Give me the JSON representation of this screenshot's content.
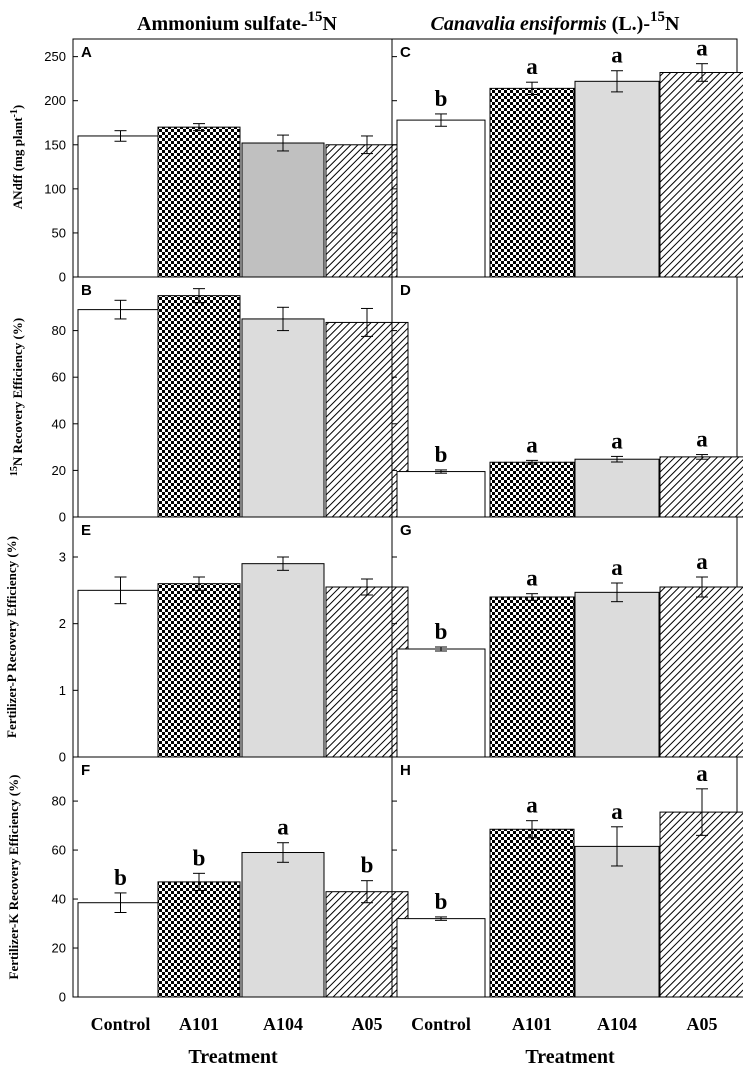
{
  "figure": {
    "column_titles": [
      {
        "main": "Ammonium sulfate-",
        "sup": "15",
        "tail": "N",
        "italic": ""
      },
      {
        "main": "Canavalia ensiformis",
        "sup": "15",
        "tail": "N",
        "italic_suffix": " (L.)-"
      }
    ],
    "x_title": "Treatment",
    "categories": [
      "Control",
      "A101",
      "A104",
      "A05"
    ],
    "fills": [
      "white",
      "checker",
      "lightgray",
      "hatch"
    ],
    "row_y_labels": [
      {
        "pre": "ANdff (mg plant",
        "sup": "-1",
        "post": ")"
      },
      {
        "pre": "",
        "sup": "15",
        "post": "N Recovery Efficiency (%)"
      },
      {
        "pre": "Fertilizer-P Recovery Efficiency (%)",
        "sup": "",
        "post": ""
      },
      {
        "pre": "Fertilizer-K Recovery Efficiency (%)",
        "sup": "",
        "post": ""
      }
    ]
  },
  "chart_data": [
    {
      "type": "bar",
      "panel": "A",
      "row": 0,
      "col": 0,
      "ylim": [
        0,
        270
      ],
      "yticks": [
        0,
        50,
        100,
        150,
        200,
        250
      ],
      "categories": [
        "Control",
        "A101",
        "A104",
        "A05"
      ],
      "values": [
        160,
        170,
        152,
        150
      ],
      "errors": [
        6,
        4,
        9,
        10
      ],
      "letters": [
        "",
        "",
        "",
        ""
      ],
      "fills": [
        "white",
        "checker",
        "gray",
        "hatch"
      ]
    },
    {
      "type": "bar",
      "panel": "C",
      "row": 0,
      "col": 1,
      "ylim": [
        0,
        270
      ],
      "yticks": [
        0,
        50,
        100,
        150,
        200,
        250
      ],
      "categories": [
        "Control",
        "A101",
        "A104",
        "A05"
      ],
      "values": [
        178,
        214,
        222,
        232
      ],
      "errors": [
        7,
        7,
        12,
        10
      ],
      "letters": [
        "b",
        "a",
        "a",
        "a"
      ],
      "fills": [
        "white",
        "checker",
        "lightgray",
        "hatch"
      ]
    },
    {
      "type": "bar",
      "panel": "B",
      "row": 1,
      "col": 0,
      "ylim": [
        0,
        103
      ],
      "yticks": [
        0,
        20,
        40,
        60,
        80
      ],
      "categories": [
        "Control",
        "A101",
        "A104",
        "A05"
      ],
      "values": [
        89,
        95,
        85,
        83.5
      ],
      "errors": [
        4,
        3,
        5,
        6
      ],
      "letters": [
        "",
        "",
        "",
        ""
      ],
      "fills": [
        "white",
        "checker",
        "lightgray",
        "hatch"
      ]
    },
    {
      "type": "bar",
      "panel": "D",
      "row": 1,
      "col": 1,
      "ylim": [
        0,
        103
      ],
      "yticks": [
        0,
        20,
        40,
        60,
        80
      ],
      "categories": [
        "Control",
        "A101",
        "A104",
        "A05"
      ],
      "values": [
        19.5,
        23.5,
        24.8,
        25.8
      ],
      "errors": [
        0.7,
        0.8,
        1.2,
        1.0
      ],
      "letters": [
        "b",
        "a",
        "a",
        "a"
      ],
      "fills": [
        "white",
        "checker",
        "lightgray",
        "hatch"
      ]
    },
    {
      "type": "bar",
      "panel": "E",
      "row": 2,
      "col": 0,
      "ylim": [
        0,
        3.6
      ],
      "yticks": [
        0,
        1,
        2,
        3
      ],
      "categories": [
        "Control",
        "A101",
        "A104",
        "A05"
      ],
      "values": [
        2.5,
        2.6,
        2.9,
        2.55
      ],
      "errors": [
        0.2,
        0.1,
        0.1,
        0.12
      ],
      "letters": [
        "",
        "",
        "",
        ""
      ],
      "fills": [
        "white",
        "checker",
        "lightgray",
        "hatch"
      ]
    },
    {
      "type": "bar",
      "panel": "G",
      "row": 2,
      "col": 1,
      "ylim": [
        0,
        3.6
      ],
      "yticks": [
        0,
        1,
        2,
        3
      ],
      "categories": [
        "Control",
        "A101",
        "A104",
        "A05"
      ],
      "values": [
        1.62,
        2.4,
        2.47,
        2.55
      ],
      "errors": [
        0.03,
        0.05,
        0.14,
        0.15
      ],
      "letters": [
        "b",
        "a",
        "a",
        "a"
      ],
      "fills": [
        "white",
        "checker",
        "lightgray",
        "hatch"
      ]
    },
    {
      "type": "bar",
      "panel": "F",
      "row": 3,
      "col": 0,
      "ylim": [
        0,
        98
      ],
      "yticks": [
        0,
        20,
        40,
        60,
        80
      ],
      "categories": [
        "Control",
        "A101",
        "A104",
        "A05"
      ],
      "values": [
        38.5,
        47,
        59,
        43
      ],
      "errors": [
        4,
        3.5,
        4,
        4.5
      ],
      "letters": [
        "b",
        "b",
        "a",
        "b"
      ],
      "fills": [
        "white",
        "checker",
        "lightgray",
        "hatch"
      ]
    },
    {
      "type": "bar",
      "panel": "H",
      "row": 3,
      "col": 1,
      "ylim": [
        0,
        98
      ],
      "yticks": [
        0,
        20,
        40,
        60,
        80
      ],
      "categories": [
        "Control",
        "A101",
        "A104",
        "A05"
      ],
      "values": [
        32,
        68.5,
        61.5,
        75.5
      ],
      "errors": [
        0.7,
        3.5,
        8,
        9.5
      ],
      "letters": [
        "b",
        "a",
        "a",
        "a"
      ],
      "fills": [
        "white",
        "checker",
        "lightgray",
        "hatch"
      ]
    }
  ]
}
